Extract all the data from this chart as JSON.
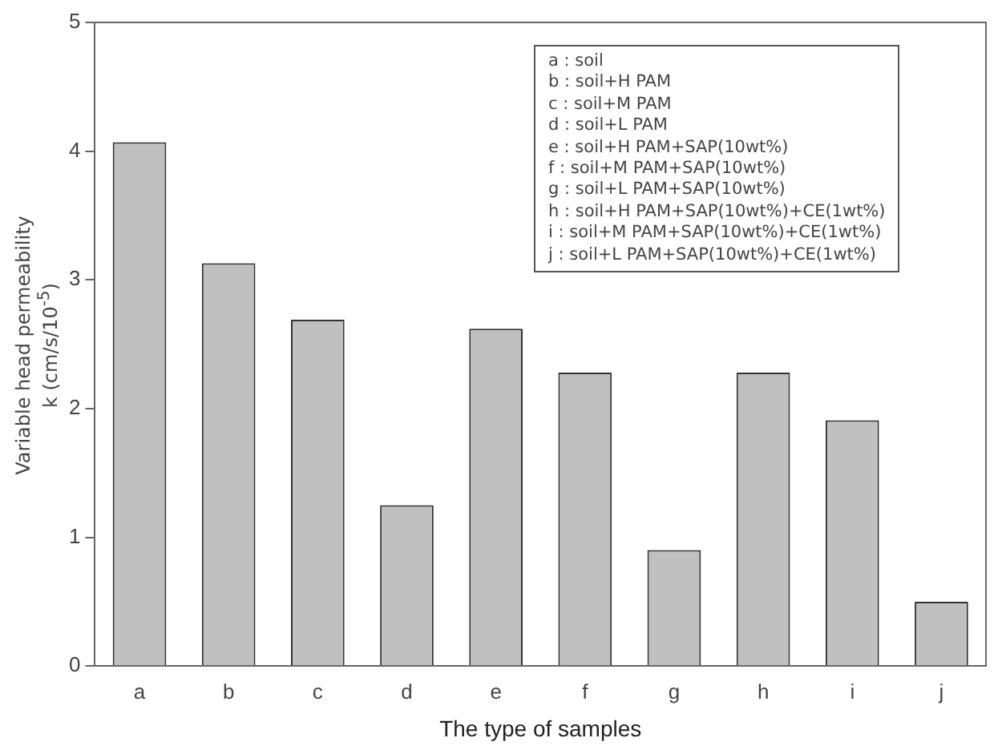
{
  "chart_data": {
    "type": "bar",
    "xlabel": "The type of samples",
    "ylabel": "Variable head permeability k (cm/s/10$^{-5}$)",
    "categories": [
      "a",
      "b",
      "c",
      "d",
      "e",
      "f",
      "g",
      "h",
      "i",
      "j"
    ],
    "values": [
      4.07,
      3.13,
      2.69,
      1.25,
      2.62,
      2.28,
      0.9,
      2.28,
      1.91,
      0.5
    ],
    "color": "#c0c0c0",
    "ylim": [
      0,
      5
    ],
    "yticks": [
      0,
      1,
      2,
      3,
      4,
      5
    ],
    "grid": false,
    "annotations": [
      "a : soil",
      "b : soil+H PAM",
      "c : soil+M PAM",
      "d : soil+L PAM",
      "e : soil+H PAM+SAP(10wt%)",
      "f : soil+M PAM+SAP(10wt%)",
      "g : soil+L PAM+SAP(10wt%)",
      "h : soil+H PAM+SAP(10wt%)+CE(1wt%)",
      "i : soil+M PAM+SAP(10wt%)+CE(1wt%)",
      "j : soil+L PAM+SAP(10wt%)+CE(1wt%)"
    ]
  }
}
